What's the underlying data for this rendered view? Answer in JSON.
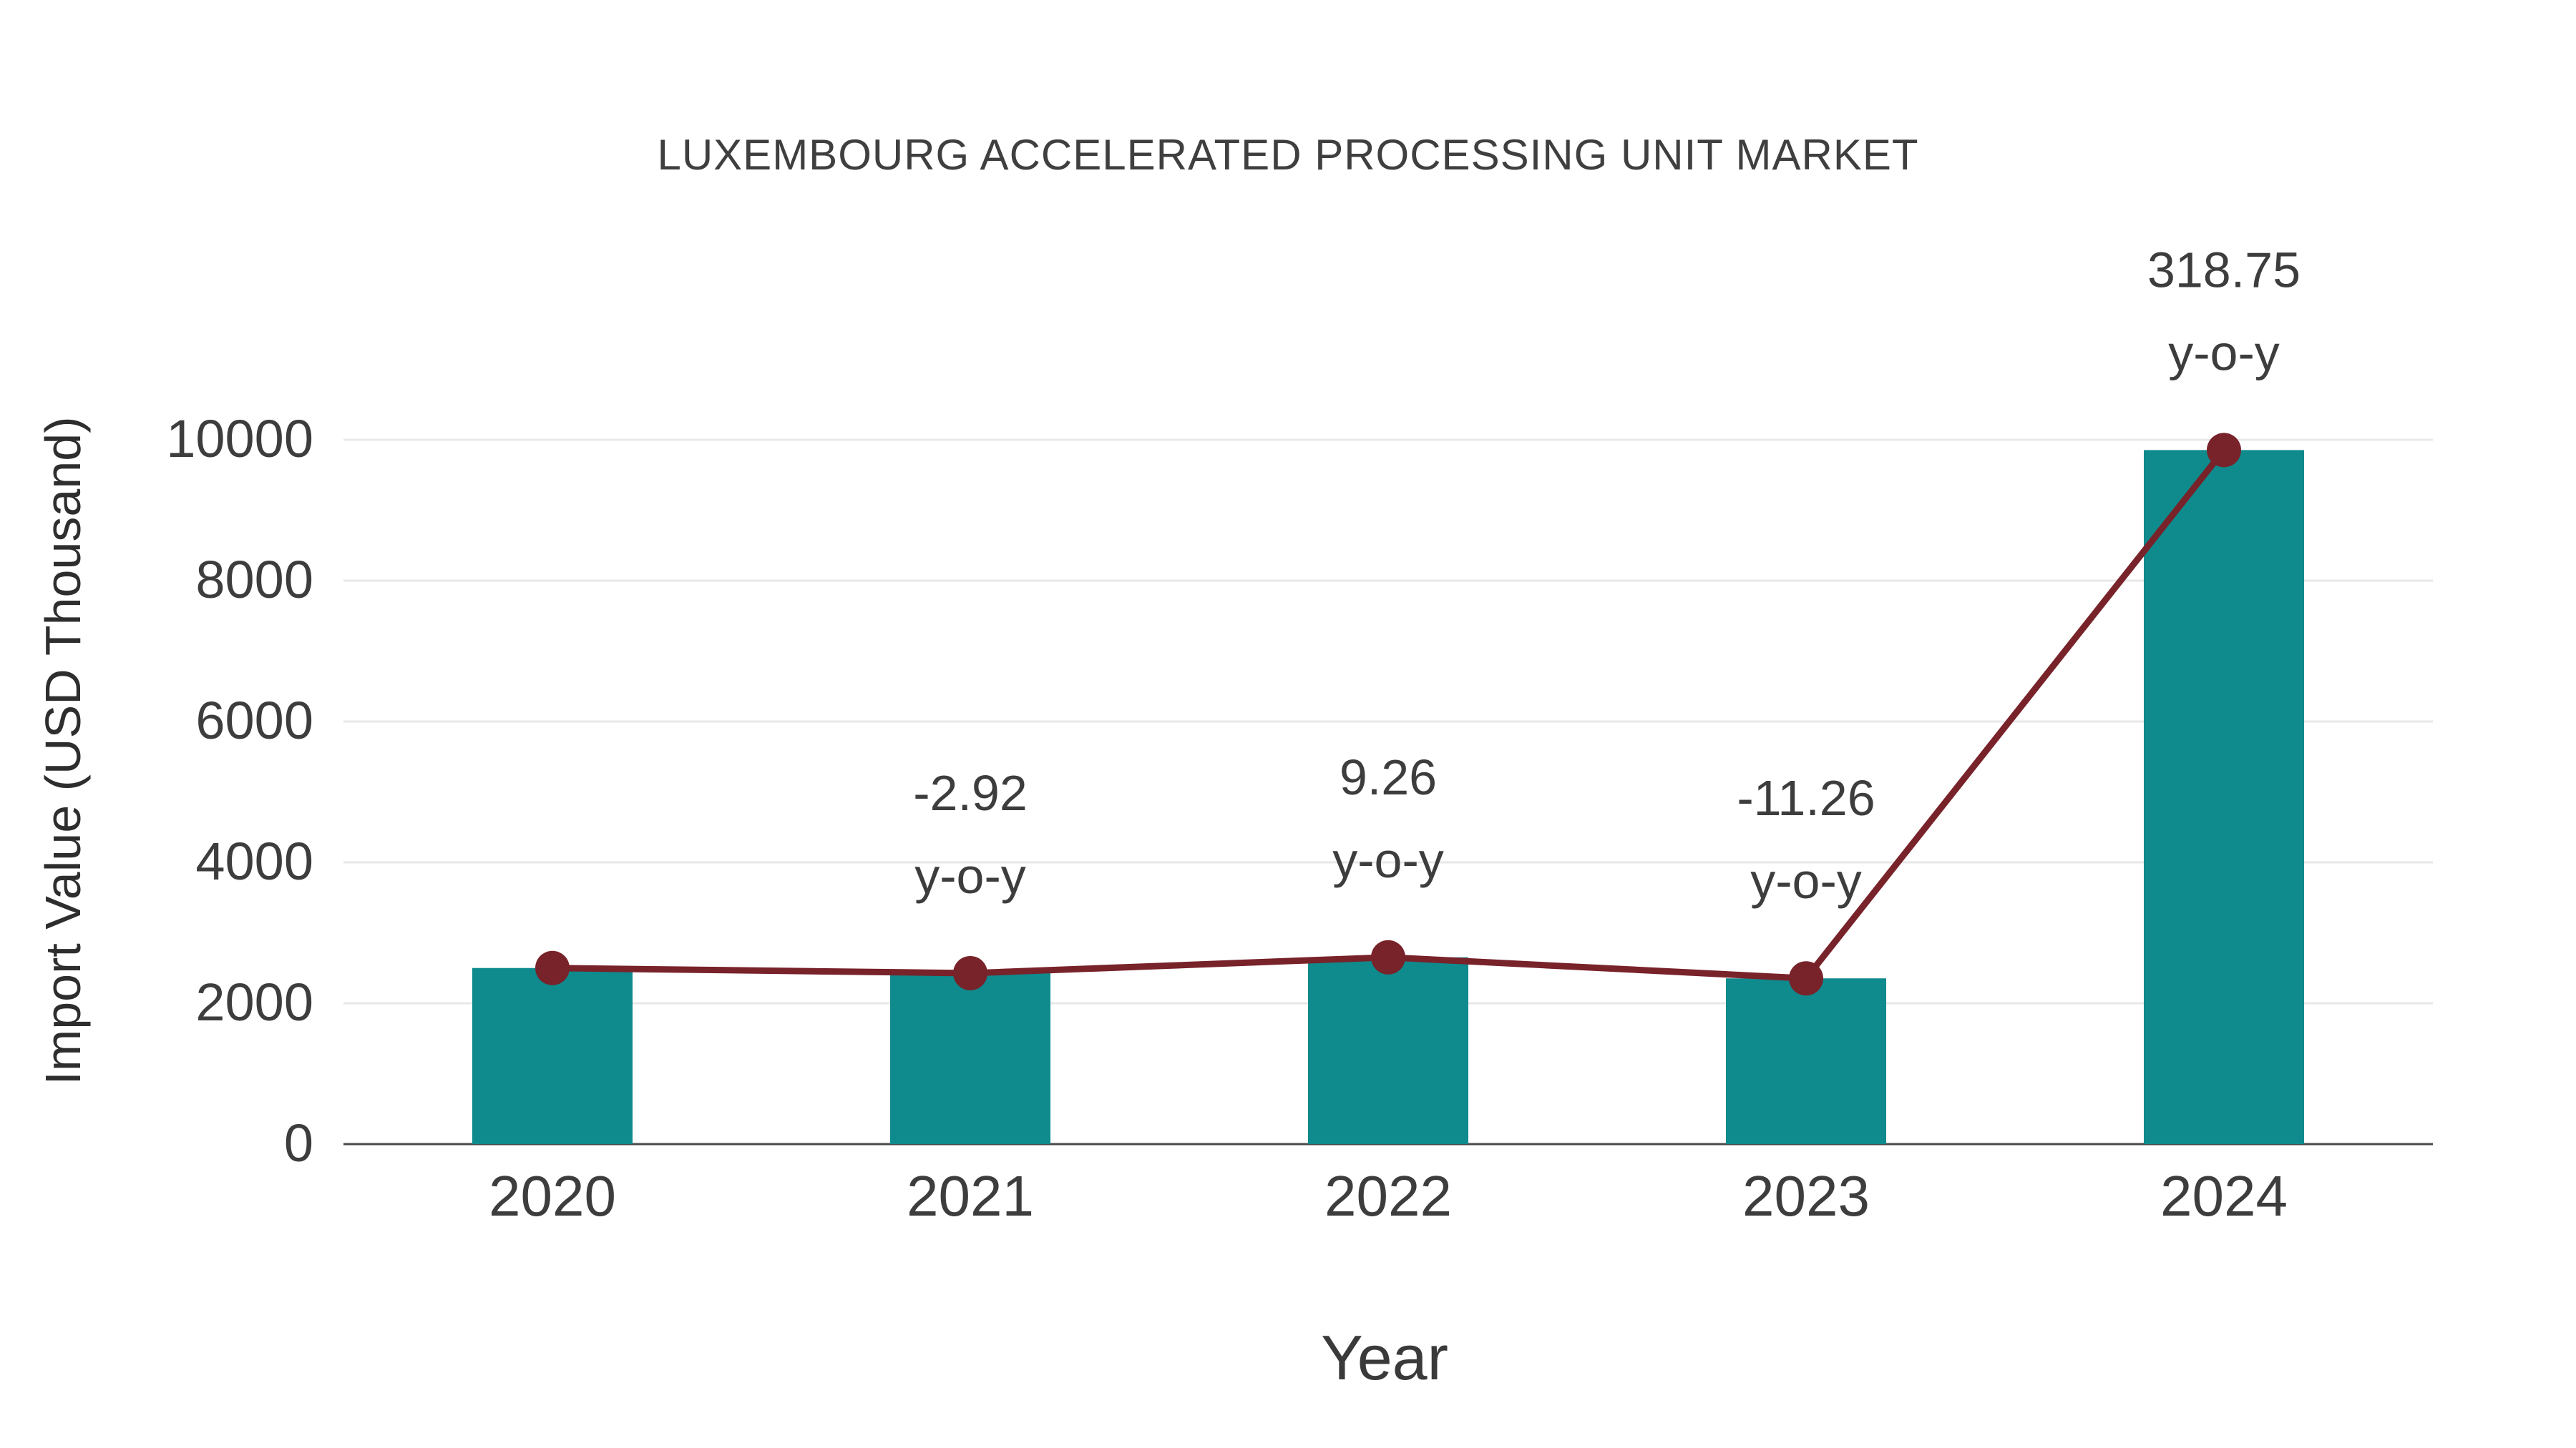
{
  "chart_data": {
    "type": "bar",
    "title": "LUXEMBOURG ACCELERATED PROCESSING UNIT MARKET",
    "xlabel": "Year",
    "ylabel": "Import Value (USD Thousand)",
    "categories": [
      "2020",
      "2021",
      "2022",
      "2023",
      "2024"
    ],
    "series": [
      {
        "name": "Import Value bars",
        "type": "bar",
        "values": [
          2500,
          2427,
          2652,
          2353,
          9854
        ]
      },
      {
        "name": "Import Value trend line",
        "type": "line",
        "values": [
          2500,
          2427,
          2652,
          2353,
          9854
        ]
      }
    ],
    "annotations": [
      null,
      "-2.92",
      "9.26",
      "-11.26",
      "318.75"
    ],
    "annotation_suffix": "y-o-y",
    "ylim": [
      0,
      10000
    ],
    "yticks": [
      0,
      2000,
      4000,
      6000,
      8000,
      10000
    ],
    "grid": true,
    "legend": "none",
    "colors": {
      "bar": "#0f8a8d",
      "line": "#78222a",
      "marker": "#78222a",
      "text": "#3d3d3d",
      "grid": "#e8e8e8",
      "axis": "#4a4a4a",
      "background": "#ffffff"
    }
  }
}
